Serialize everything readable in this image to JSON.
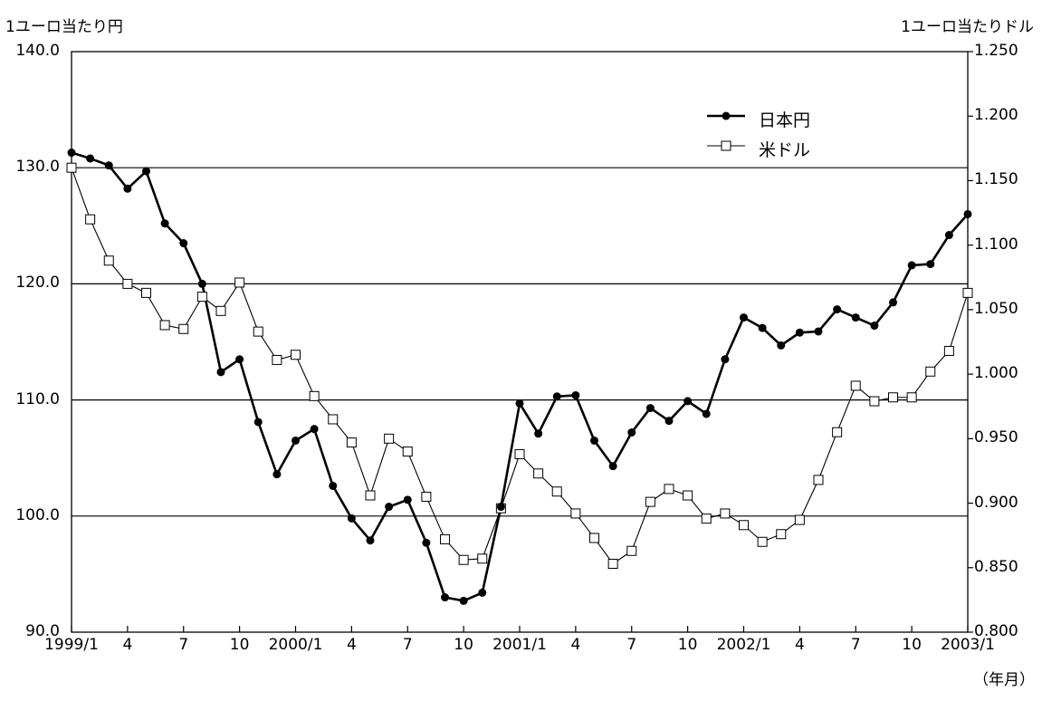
{
  "chart_data": {
    "type": "line",
    "left_axis_title": "1ユーロ当たり円",
    "right_axis_title": "1ユーロ当たりドル",
    "x_unit_label": "（年月）",
    "x_tick_labels": [
      "1999/1",
      "4",
      "7",
      "10",
      "2000/1",
      "4",
      "7",
      "10",
      "2001/1",
      "4",
      "7",
      "10",
      "2002/1",
      "4",
      "7",
      "10",
      "2003/1"
    ],
    "left_axis": {
      "min": 90.0,
      "max": 140.0,
      "ticks": [
        "90.0",
        "100.0",
        "110.0",
        "120.0",
        "130.0",
        "140.0"
      ]
    },
    "right_axis": {
      "min": 0.8,
      "max": 1.25,
      "ticks": [
        "0.800",
        "0.850",
        "0.900",
        "0.950",
        "1.000",
        "1.050",
        "1.100",
        "1.150",
        "1.200",
        "1.250"
      ]
    },
    "gridlines_left": [
      100,
      110,
      120,
      130
    ],
    "legend_position": "top-right",
    "series": [
      {
        "name": "日本円",
        "axis": "left",
        "color": "#000000",
        "marker": "filled-circle",
        "values": [
          131.3,
          130.8,
          130.2,
          128.2,
          129.7,
          125.2,
          123.5,
          120.0,
          112.4,
          113.5,
          108.1,
          103.6,
          106.5,
          107.5,
          102.6,
          99.8,
          97.9,
          100.8,
          101.4,
          97.7,
          93.0,
          92.7,
          93.4,
          100.8,
          109.7,
          107.1,
          110.3,
          110.4,
          106.5,
          104.3,
          107.2,
          109.3,
          108.2,
          109.9,
          108.8,
          113.5,
          117.1,
          116.2,
          114.7,
          115.8,
          115.9,
          117.8,
          117.1,
          116.4,
          118.4,
          121.6,
          121.7,
          124.2,
          126.0
        ]
      },
      {
        "name": "米ドル",
        "axis": "right",
        "color": "#000000",
        "marker": "open-square",
        "values": [
          1.16,
          1.12,
          1.088,
          1.07,
          1.063,
          1.038,
          1.035,
          1.06,
          1.049,
          1.071,
          1.033,
          1.011,
          1.015,
          0.983,
          0.965,
          0.947,
          0.906,
          0.95,
          0.94,
          0.905,
          0.872,
          0.856,
          0.857,
          0.896,
          0.938,
          0.923,
          0.909,
          0.892,
          0.873,
          0.853,
          0.863,
          0.901,
          0.911,
          0.906,
          0.888,
          0.892,
          0.883,
          0.87,
          0.876,
          0.887,
          0.918,
          0.955,
          0.991,
          0.979,
          0.982,
          0.982,
          1.002,
          1.018,
          1.063
        ]
      }
    ]
  }
}
